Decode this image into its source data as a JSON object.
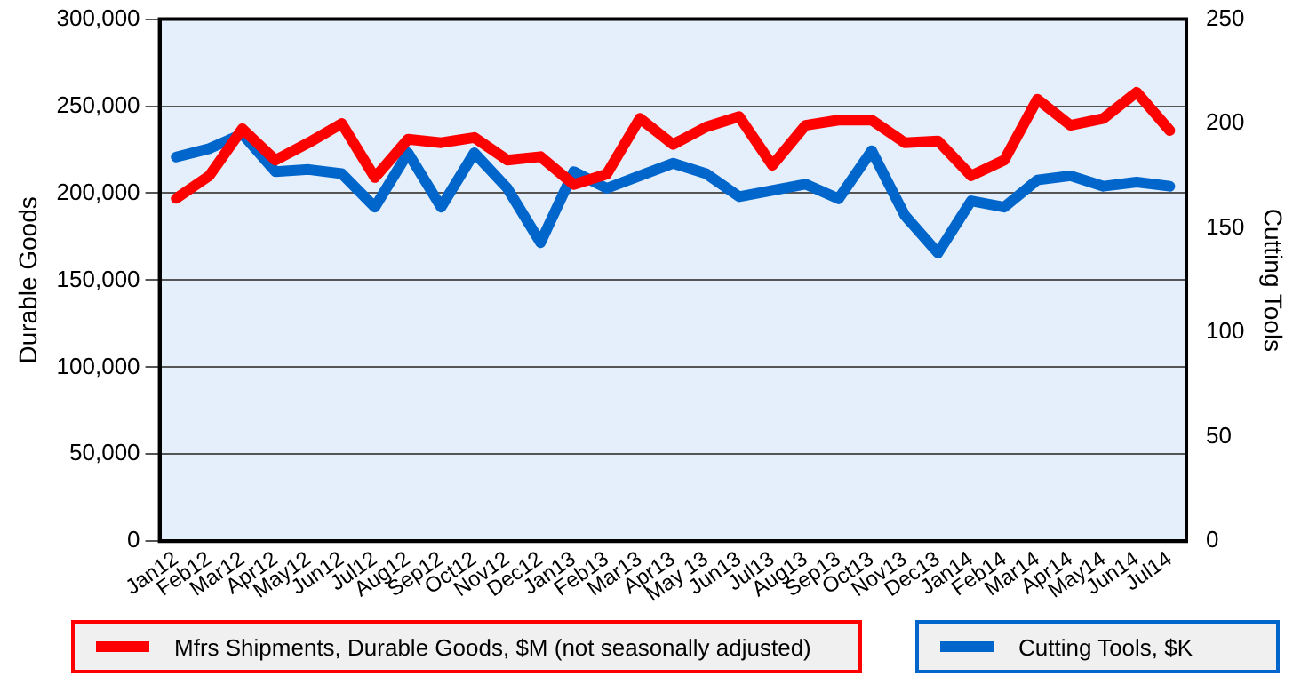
{
  "chart_data": {
    "type": "line",
    "ylabel": "Durable Goods",
    "y2label": "Cutting Tools",
    "categories": [
      "Jan12",
      "Feb12",
      "Mar12",
      "Apr12",
      "May12",
      "Jun12",
      "Jul12",
      "Aug12",
      "Sep12",
      "Oct12",
      "Nov12",
      "Dec12",
      "Jan13",
      "Feb13",
      "Mar13",
      "Apr13",
      "May 13",
      "Jun13",
      "Jul13",
      "Aug13",
      "Sep13",
      "Oct13",
      "Nov13",
      "Dec13",
      "Jan14",
      "Feb14",
      "Mar14",
      "Apr14",
      "May14",
      "Jun14",
      "Jul14"
    ],
    "series": [
      {
        "name": "Mfrs Shipments, Durable Goods, $M (not seasonally adjusted)",
        "color": "#ff0000",
        "values": [
          197000,
          210000,
          237000,
          219000,
          229000,
          240000,
          209000,
          231000,
          229000,
          232000,
          219000,
          221000,
          205000,
          211000,
          243000,
          228000,
          238000,
          244000,
          216000,
          239000,
          242000,
          242000,
          229000,
          230000,
          210000,
          219000,
          254000,
          239000,
          243000,
          258000,
          236000
        ]
      },
      {
        "name": "Cutting Tools, $K",
        "color": "#0066cc",
        "axis": "y2",
        "values": [
          184,
          188,
          195,
          177,
          178,
          176,
          160,
          186,
          160,
          186,
          169,
          143,
          177,
          169,
          175,
          181,
          176,
          165,
          168,
          171,
          164,
          187,
          156,
          138,
          163,
          160,
          173,
          175,
          170,
          172,
          170
        ]
      }
    ],
    "ylim": [
      0,
      300000
    ],
    "yticks": [
      0,
      {
        "value": 50000,
        "label": "50,000"
      },
      {
        "value": 100000,
        "label": "100,000"
      },
      {
        "value": 150000,
        "label": "150,000"
      },
      {
        "value": 200000,
        "label": "200,000"
      },
      {
        "value": 250000,
        "label": "250,000"
      },
      {
        "value": 300000,
        "label": "300,000"
      }
    ],
    "y2lim": [
      0,
      250
    ],
    "y2ticks": [
      0,
      50,
      100,
      150,
      200,
      250
    ],
    "grid": "y",
    "legend": "bottom",
    "marker": "none",
    "line_style": "solid"
  }
}
